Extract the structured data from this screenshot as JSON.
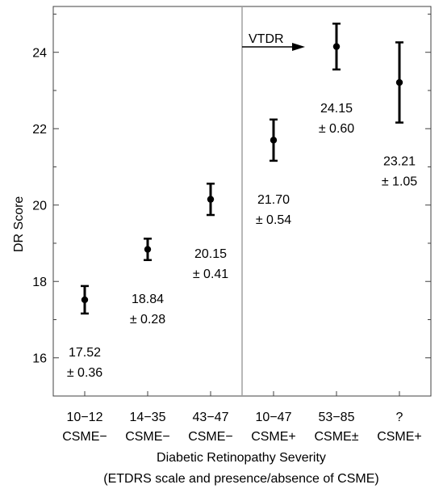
{
  "chart_data": {
    "type": "scatter",
    "xlabel_lines": [
      "Diabetic Retinopathy Severity",
      "(ETDRS scale and presence/absence of CSME)"
    ],
    "ylabel": "DR Score",
    "ylim": [
      15,
      25.2
    ],
    "yticks_major": [
      16,
      18,
      20,
      22,
      24
    ],
    "yticks_minor": [
      15,
      17,
      19,
      21,
      23,
      25
    ],
    "categories": [
      {
        "line1": "10−12",
        "line2": "CSME−"
      },
      {
        "line1": "14−35",
        "line2": "CSME−"
      },
      {
        "line1": "43−47",
        "line2": "CSME−"
      },
      {
        "line1": "10−47",
        "line2": "CSME+"
      },
      {
        "line1": "53−85",
        "line2": "CSME±"
      },
      {
        "line1": "?",
        "line2": "CSME+"
      }
    ],
    "points": [
      {
        "mean": 17.52,
        "err": 0.36,
        "label1": "17.52",
        "label2": "± 0.36"
      },
      {
        "mean": 18.84,
        "err": 0.28,
        "label1": "18.84",
        "label2": "± 0.28"
      },
      {
        "mean": 20.15,
        "err": 0.41,
        "label1": "20.15",
        "label2": "± 0.41"
      },
      {
        "mean": 21.7,
        "err": 0.54,
        "label1": "21.70",
        "label2": "± 0.54"
      },
      {
        "mean": 24.15,
        "err": 0.6,
        "label1": "24.15",
        "label2": "± 0.60"
      },
      {
        "mean": 23.21,
        "err": 1.05,
        "label1": "23.21",
        "label2": "± 1.05"
      }
    ],
    "divider_after_category": 3,
    "annotation": {
      "text": "VTDR",
      "arrow": "right"
    },
    "grid": false
  }
}
